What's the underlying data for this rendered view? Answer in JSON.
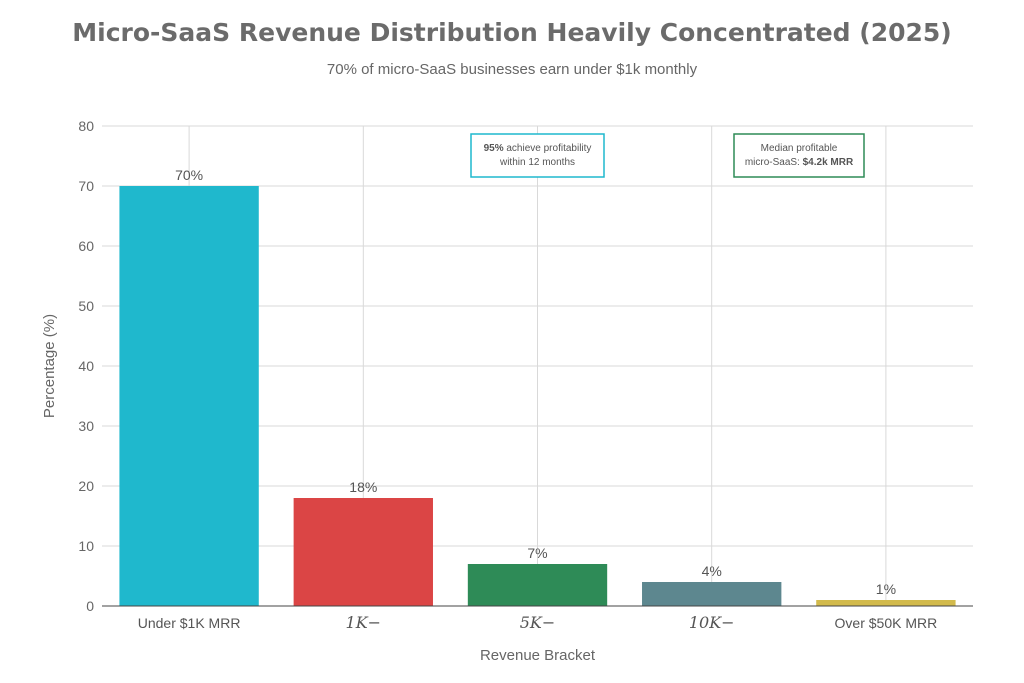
{
  "title": "Micro-SaaS Revenue Distribution Heavily Concentrated (2025)",
  "subtitle": "70% of micro-SaaS businesses earn under $1k monthly",
  "chart_data": {
    "type": "bar",
    "categories": [
      "Under $1K MRR",
      "1K-",
      "5K-",
      "10K-",
      "Over $50K MRR"
    ],
    "category_display": [
      {
        "text": "Under $1K MRR",
        "math": false
      },
      {
        "text": "1K−",
        "math": true
      },
      {
        "text": "5K−",
        "math": true
      },
      {
        "text": "10K−",
        "math": true
      },
      {
        "text": "Over $50K MRR",
        "math": false
      }
    ],
    "values": [
      70,
      18,
      7,
      4,
      1
    ],
    "value_labels": [
      "70%",
      "18%",
      "7%",
      "4%",
      "1%"
    ],
    "colors": [
      "#1fb8cd",
      "#db4545",
      "#2e8b57",
      "#5d878f",
      "#d2ba4c"
    ],
    "xlabel": "Revenue Bracket",
    "ylabel": "Percentage (%)",
    "ylim": [
      0,
      80
    ],
    "yticks": [
      0,
      10,
      20,
      30,
      40,
      50,
      60,
      70,
      80
    ],
    "grid": true,
    "annotations": [
      {
        "bold": "95%",
        "rest": " achieve profitability",
        "line2": "within 12 months",
        "border_color": "#1fb8cd"
      },
      {
        "line1": "Median profitable",
        "pre": "micro-SaaS: ",
        "bold": "$4.2k MRR",
        "border_color": "#2e8b57"
      }
    ]
  }
}
